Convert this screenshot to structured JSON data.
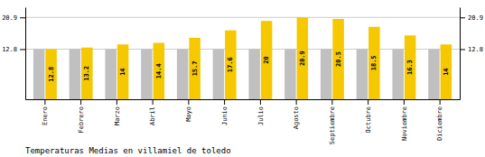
{
  "chart_data": {
    "type": "bar",
    "title": "Temperaturas Medias en villamiel de toledo",
    "categories": [
      "Enero",
      "Febrero",
      "Marzo",
      "Abril",
      "Mayo",
      "Junio",
      "Julio",
      "Agosto",
      "Septiembre",
      "Octubre",
      "Noviembre",
      "Diciembre"
    ],
    "series": [
      {
        "color": "#C0C0C0",
        "values": [
          12.8,
          12.8,
          12.8,
          12.8,
          12.8,
          12.8,
          12.8,
          12.8,
          12.8,
          12.8,
          12.8,
          12.8
        ]
      },
      {
        "color": "#F5C800",
        "data_labels": true,
        "values": [
          12.8,
          13.2,
          14.0,
          14.4,
          15.7,
          17.6,
          20.0,
          20.9,
          20.5,
          18.5,
          16.3,
          14.0
        ]
      }
    ],
    "ylim": [
      0,
      23.5
    ],
    "yticks": [
      12.8,
      20.9
    ],
    "grid": true
  }
}
